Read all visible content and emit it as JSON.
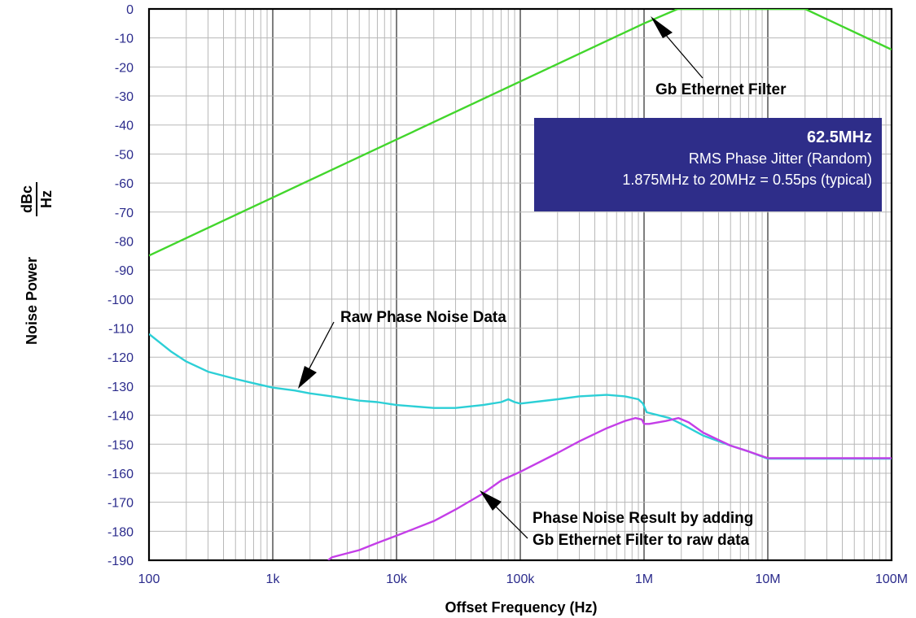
{
  "chart_data": {
    "type": "line",
    "x_scale": "log",
    "xlim": [
      100,
      100000000
    ],
    "ylim": [
      -190,
      0
    ],
    "grid": true,
    "x_ticks": [
      {
        "value": 100,
        "label": "100"
      },
      {
        "value": 1000,
        "label": "1k"
      },
      {
        "value": 10000,
        "label": "10k"
      },
      {
        "value": 100000,
        "label": "100k"
      },
      {
        "value": 1000000,
        "label": "1M"
      },
      {
        "value": 10000000,
        "label": "10M"
      },
      {
        "value": 100000000,
        "label": "100M"
      }
    ],
    "y_ticks": [
      0,
      -10,
      -20,
      -30,
      -40,
      -50,
      -60,
      -70,
      -80,
      -90,
      -100,
      -110,
      -120,
      -130,
      -140,
      -150,
      -160,
      -170,
      -180,
      -190
    ],
    "xlabel": "Offset Frequency (Hz)",
    "ylabel": "Noise Power",
    "ylabel_unit_num": "dBc",
    "ylabel_unit_den": "Hz",
    "series": [
      {
        "color": "#42d62c",
        "x": [
          100,
          1000,
          10000,
          100000,
          1000000,
          1875000,
          20000000,
          100000000
        ],
        "y": [
          -85,
          -65,
          -45,
          -25,
          -5,
          0,
          0,
          -14
        ]
      },
      {
        "color": "#2ccfd6",
        "x": [
          100,
          150,
          200,
          300,
          500,
          700,
          1000,
          1500,
          2000,
          3000,
          5000,
          7000,
          10000,
          20000,
          30000,
          50000,
          70000,
          80000,
          90000,
          100000,
          200000,
          300000,
          500000,
          700000,
          900000,
          980000,
          1050000,
          1300000,
          1600000,
          2000000,
          3000000,
          5000000,
          7000000,
          10000000,
          20000000,
          50000000,
          100000000
        ],
        "y": [
          -112,
          -118,
          -121.5,
          -125,
          -127.5,
          -129,
          -130.5,
          -131.5,
          -132.5,
          -133.5,
          -135,
          -135.5,
          -136.5,
          -137.5,
          -137.5,
          -136.5,
          -135.5,
          -134.5,
          -135.5,
          -136,
          -134.5,
          -133.5,
          -133,
          -133.5,
          -134.5,
          -136,
          -139,
          -140,
          -141,
          -143,
          -147,
          -150.5,
          -152.5,
          -155,
          -155,
          -155,
          -155
        ]
      },
      {
        "color": "#c43ee8",
        "x": [
          2800,
          3000,
          5000,
          7000,
          10000,
          20000,
          30000,
          50000,
          70000,
          100000,
          200000,
          300000,
          500000,
          700000,
          850000,
          960000,
          1000000,
          1100000,
          1500000,
          1900000,
          2300000,
          3000000,
          5000000,
          7000000,
          10000000,
          20000000,
          50000000,
          100000000
        ],
        "y": [
          -190,
          -189,
          -186.5,
          -184,
          -181.5,
          -176.5,
          -172.5,
          -167,
          -162.5,
          -159.5,
          -153,
          -149,
          -144.5,
          -142,
          -141,
          -141.5,
          -143,
          -143,
          -142,
          -141,
          -142.5,
          -146,
          -150.5,
          -152.5,
          -154.8,
          -154.8,
          -154.8,
          -154.8
        ]
      }
    ],
    "annotations": [
      {
        "id": "gb-filter",
        "text": "Gb Ethernet Filter"
      },
      {
        "id": "raw-data",
        "text": "Raw Phase Noise Data"
      },
      {
        "id": "result-1",
        "text": "Phase Noise Result by adding"
      },
      {
        "id": "result-2",
        "text": "Gb Ethernet Filter to raw data"
      }
    ],
    "info_box": {
      "title": "62.5MHz",
      "line2": "RMS Phase Jitter (Random)",
      "line3": "1.875MHz to 20MHz = 0.55ps (typical)",
      "background": "#2e2d89"
    }
  }
}
